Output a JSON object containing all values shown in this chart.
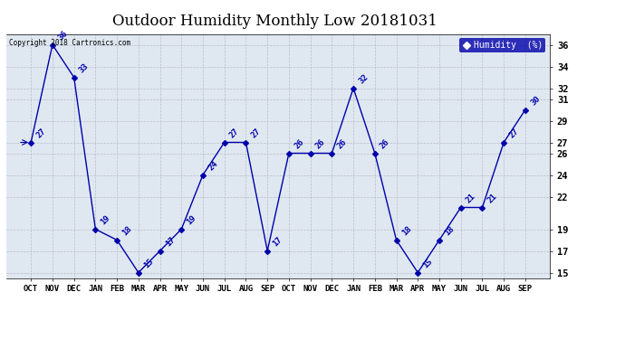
{
  "title": "Outdoor Humidity Monthly Low 20181031",
  "copyright": "Copyright 2018 Cartronics.com",
  "legend_label": "Humidity  (%)",
  "x_labels": [
    "OCT",
    "NOV",
    "DEC",
    "JAN",
    "FEB",
    "MAR",
    "APR",
    "MAY",
    "JUN",
    "JUL",
    "AUG",
    "SEP",
    "OCT",
    "NOV",
    "DEC",
    "JAN",
    "FEB",
    "MAR",
    "APR",
    "MAY",
    "JUN",
    "JUL",
    "AUG",
    "SEP"
  ],
  "y_values": [
    27,
    36,
    33,
    19,
    18,
    15,
    17,
    19,
    24,
    27,
    27,
    17,
    26,
    26,
    26,
    32,
    26,
    18,
    15,
    18,
    21,
    21,
    27,
    30
  ],
  "line_color": "#0000aa",
  "marker": "D",
  "marker_size": 3,
  "ylim": [
    14.5,
    37
  ],
  "yticks": [
    15,
    17,
    19,
    22,
    24,
    26,
    27,
    29,
    31,
    32,
    34,
    36
  ],
  "grid_color": "#bbbbcc",
  "bg_color": "#ffffff",
  "plot_bg_color": "#dfe8f0",
  "title_fontsize": 12,
  "legend_bg": "#0000aa",
  "legend_fg": "#ffffff"
}
